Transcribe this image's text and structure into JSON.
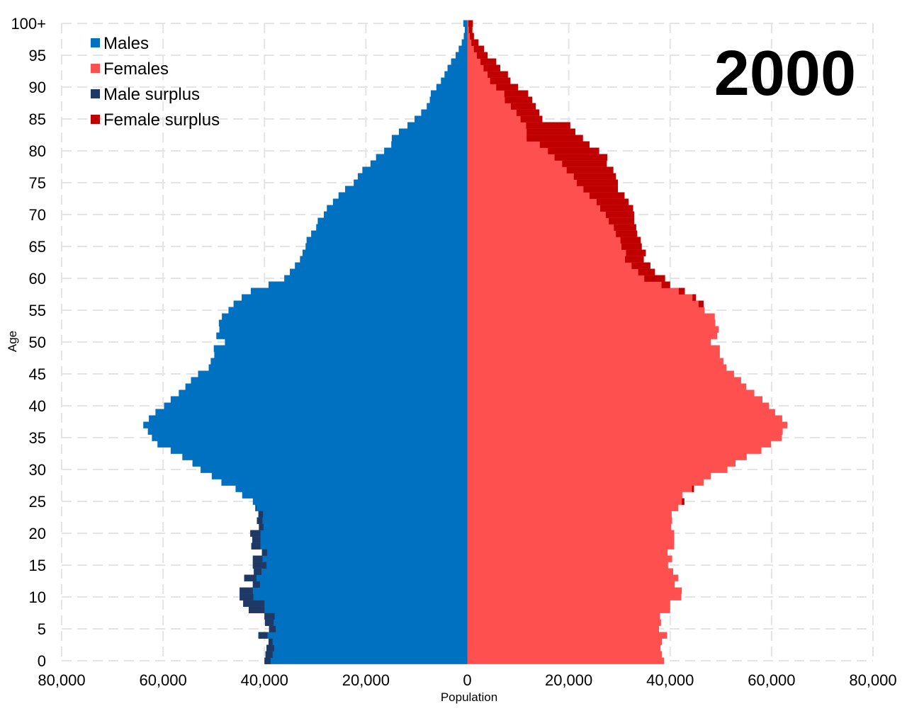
{
  "chart_data": {
    "type": "bar",
    "orientation": "horizontal-pyramid",
    "year_label": "2000",
    "xlabel": "Population",
    "ylabel": "Age",
    "xlim": [
      -80000,
      80000
    ],
    "x_ticks": [
      -80000,
      -60000,
      -40000,
      -20000,
      0,
      20000,
      40000,
      60000,
      80000
    ],
    "x_tick_labels": [
      "80,000",
      "60,000",
      "40,000",
      "20,000",
      "0",
      "20,000",
      "40,000",
      "60,000",
      "80,000"
    ],
    "y_ticks": [
      0,
      5,
      10,
      15,
      20,
      25,
      30,
      35,
      40,
      45,
      50,
      55,
      60,
      65,
      70,
      75,
      80,
      85,
      90,
      95,
      100
    ],
    "y_tick_labels": [
      "0",
      "5",
      "10",
      "15",
      "20",
      "25",
      "30",
      "35",
      "40",
      "45",
      "50",
      "55",
      "60",
      "65",
      "70",
      "75",
      "80",
      "85",
      "90",
      "95",
      "100+"
    ],
    "grid": true,
    "legend_position": "top-left",
    "legend": [
      {
        "label": "Males",
        "color": "#0070c0"
      },
      {
        "label": "Females",
        "color": "#ff5050"
      },
      {
        "label": "Male surplus",
        "color": "#1f3864"
      },
      {
        "label": "Female surplus",
        "color": "#c00000"
      }
    ],
    "colors": {
      "male": "#0070c0",
      "female": "#ff5050",
      "male_surplus": "#1f3864",
      "female_surplus": "#c00000"
    },
    "ages": [
      0,
      1,
      2,
      3,
      4,
      5,
      6,
      7,
      8,
      9,
      10,
      11,
      12,
      13,
      14,
      15,
      16,
      17,
      18,
      19,
      20,
      21,
      22,
      23,
      24,
      25,
      26,
      27,
      28,
      29,
      30,
      31,
      32,
      33,
      34,
      35,
      36,
      37,
      38,
      39,
      40,
      41,
      42,
      43,
      44,
      45,
      46,
      47,
      48,
      49,
      50,
      51,
      52,
      53,
      54,
      55,
      56,
      57,
      58,
      59,
      60,
      61,
      62,
      63,
      64,
      65,
      66,
      67,
      68,
      69,
      70,
      71,
      72,
      73,
      74,
      75,
      76,
      77,
      78,
      79,
      80,
      81,
      82,
      83,
      84,
      85,
      86,
      87,
      88,
      89,
      90,
      91,
      92,
      93,
      94,
      95,
      96,
      97,
      98,
      99,
      100
    ],
    "series": [
      {
        "name": "Males",
        "values": [
          40000,
          39800,
          39600,
          39200,
          41200,
          39100,
          39900,
          40000,
          43100,
          44200,
          44900,
          44900,
          42300,
          44000,
          42100,
          42300,
          42300,
          40500,
          42600,
          42400,
          42800,
          41100,
          41500,
          41200,
          41800,
          42300,
          44400,
          45700,
          48500,
          50400,
          52600,
          54200,
          56200,
          58500,
          61100,
          62200,
          63000,
          63900,
          62800,
          61500,
          59800,
          58500,
          56900,
          55600,
          54500,
          53100,
          51000,
          50600,
          49900,
          50000,
          47800,
          49500,
          48900,
          49000,
          48400,
          47100,
          46100,
          44500,
          42700,
          39200,
          36100,
          35000,
          34000,
          33000,
          32500,
          31900,
          31700,
          30800,
          29800,
          29500,
          28300,
          27700,
          26500,
          25400,
          24100,
          22400,
          21600,
          20700,
          19100,
          18000,
          16400,
          15000,
          14900,
          13500,
          11800,
          10400,
          9100,
          8000,
          7400,
          7200,
          6100,
          5200,
          4500,
          3900,
          3200,
          2300,
          1700,
          1100,
          700,
          500,
          800
        ],
        "surplus": [
          38800,
          38400,
          38100,
          38400,
          39400,
          37800,
          38200,
          38000,
          40000,
          40000,
          42200,
          42300,
          40900,
          41600,
          40600,
          39600,
          40400,
          39500,
          40800,
          40800,
          40800,
          40200,
          40400,
          40300,
          41600,
          0,
          0,
          0,
          0,
          0,
          0,
          0,
          0,
          0,
          0,
          0,
          0,
          0,
          0,
          0,
          0,
          0,
          0,
          0,
          0,
          0,
          0,
          0,
          0,
          0,
          0,
          0,
          0,
          0,
          0,
          0,
          0,
          0,
          0,
          0,
          0,
          0,
          0,
          0,
          0,
          0,
          0,
          0,
          0,
          0,
          0,
          0,
          0,
          0,
          0,
          0,
          0,
          0,
          0,
          0,
          0,
          0,
          0,
          0,
          0,
          0,
          0,
          0,
          0,
          0,
          0,
          0,
          0,
          0,
          0,
          0,
          0,
          0,
          0,
          0,
          0
        ]
      },
      {
        "name": "Females",
        "values": [
          38800,
          38400,
          38100,
          38400,
          39400,
          37800,
          38200,
          38000,
          40000,
          40000,
          42200,
          42300,
          40900,
          41600,
          40600,
          39600,
          40400,
          39500,
          40800,
          40800,
          40800,
          40200,
          40400,
          40300,
          41600,
          42800,
          42400,
          44700,
          46600,
          48000,
          51300,
          52900,
          55100,
          58000,
          59900,
          62000,
          62200,
          63100,
          62100,
          60700,
          59500,
          58200,
          56600,
          55000,
          54000,
          52600,
          51100,
          50500,
          49800,
          49800,
          48000,
          49300,
          49600,
          48900,
          48800,
          46800,
          46600,
          45100,
          42900,
          40000,
          39000,
          37000,
          36100,
          34800,
          35200,
          34400,
          34200,
          33500,
          33300,
          32900,
          32900,
          32700,
          31800,
          31000,
          29700,
          29700,
          29300,
          28800,
          27500,
          27600,
          26000,
          24100,
          22800,
          21300,
          20300,
          14800,
          14200,
          13500,
          12800,
          12000,
          10000,
          8500,
          8000,
          6500,
          5700,
          4000,
          3300,
          2200,
          1300,
          1000,
          1100
        ],
        "surplus": [
          0,
          0,
          0,
          0,
          0,
          0,
          0,
          0,
          0,
          0,
          0,
          0,
          0,
          0,
          0,
          0,
          0,
          0,
          0,
          0,
          0,
          0,
          0,
          0,
          0,
          42300,
          43000,
          44300,
          47000,
          49600,
          53100,
          54400,
          57100,
          59700,
          61400,
          62800,
          0,
          0,
          0,
          0,
          0,
          0,
          0,
          0,
          0,
          0,
          0,
          0,
          0,
          0,
          0,
          0,
          0,
          0,
          0,
          0,
          45600,
          44400,
          41700,
          38300,
          34900,
          33700,
          32400,
          31100,
          31300,
          30400,
          30200,
          29300,
          28900,
          27900,
          27300,
          26200,
          25500,
          24100,
          22900,
          21600,
          21000,
          19600,
          18700,
          17200,
          15900,
          14300,
          11700,
          11700,
          11600,
          10500,
          9700,
          8600,
          7400,
          7300,
          5700,
          4500,
          4000,
          3200,
          2600,
          1900,
          1300,
          800,
          500,
          300,
          200
        ]
      }
    ]
  }
}
